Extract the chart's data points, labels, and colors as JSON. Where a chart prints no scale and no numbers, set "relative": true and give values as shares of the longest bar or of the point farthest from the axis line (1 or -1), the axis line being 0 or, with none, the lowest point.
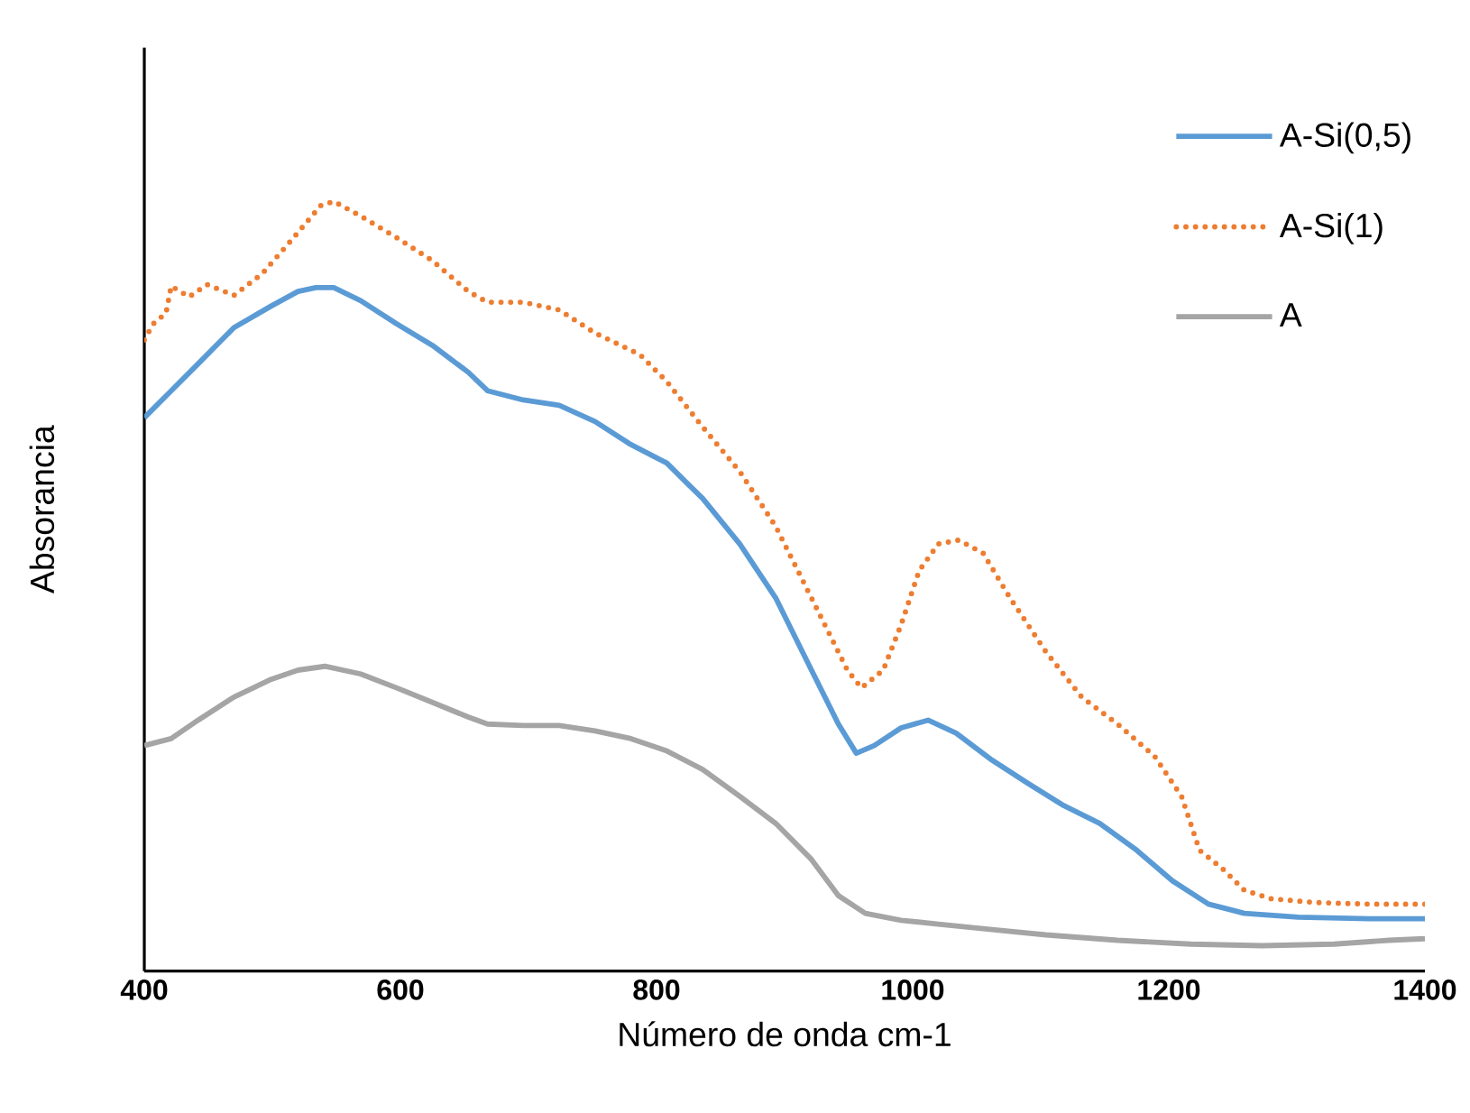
{
  "chart_data": {
    "type": "line",
    "xlabel": "Número de onda cm-1",
    "ylabel": "Absorancia",
    "relative": true,
    "xlim": [
      400,
      1400
    ],
    "xticks": [
      400,
      600,
      800,
      1000,
      1200,
      1400
    ],
    "legend": "top right",
    "marker": "none",
    "grid": false,
    "series": [
      {
        "name": "A-Si(0,5)",
        "color": "#5b9bd5",
        "line_style": "solid",
        "x": [
          400,
          421,
          442,
          470,
          499,
          520,
          534,
          548,
          569,
          597,
          625,
          653,
          668,
          696,
          724,
          752,
          780,
          808,
          836,
          865,
          893,
          921,
          942,
          956,
          970,
          991,
          1012,
          1034,
          1062,
          1090,
          1118,
          1146,
          1175,
          1203,
          1231,
          1259,
          1301,
          1357,
          1400
        ],
        "values": [
          0.719,
          0.754,
          0.789,
          0.836,
          0.864,
          0.883,
          0.888,
          0.888,
          0.871,
          0.841,
          0.813,
          0.778,
          0.754,
          0.742,
          0.735,
          0.714,
          0.684,
          0.66,
          0.614,
          0.555,
          0.485,
          0.391,
          0.321,
          0.283,
          0.293,
          0.316,
          0.326,
          0.309,
          0.274,
          0.244,
          0.215,
          0.192,
          0.157,
          0.117,
          0.087,
          0.075,
          0.07,
          0.068,
          0.068
        ]
      },
      {
        "name": "A-Si(1)",
        "color": "#ed7d31",
        "line_style": "dotted",
        "x": [
          400,
          407,
          417,
          421,
          435,
          449,
          470,
          492,
          513,
          538,
          548,
          569,
          597,
          625,
          653,
          668,
          696,
          724,
          752,
          787,
          808,
          836,
          865,
          893,
          914,
          935,
          949,
          960,
          977,
          991,
          1005,
          1020,
          1036,
          1055,
          1076,
          1104,
          1132,
          1160,
          1189,
          1210,
          1224,
          1242,
          1259,
          1280,
          1315,
          1357,
          1400
        ],
        "values": [
          0.82,
          0.841,
          0.855,
          0.89,
          0.876,
          0.892,
          0.878,
          0.906,
          0.946,
          0.995,
          1.0,
          0.981,
          0.953,
          0.923,
          0.883,
          0.869,
          0.869,
          0.859,
          0.829,
          0.801,
          0.766,
          0.707,
          0.649,
          0.578,
          0.508,
          0.438,
          0.391,
          0.368,
          0.391,
          0.45,
          0.52,
          0.555,
          0.56,
          0.543,
          0.485,
          0.415,
          0.356,
          0.321,
          0.279,
          0.227,
          0.157,
          0.133,
          0.105,
          0.094,
          0.089,
          0.087,
          0.087
        ]
      },
      {
        "name": "A",
        "color": "#a5a5a5",
        "line_style": "solid",
        "x": [
          400,
          421,
          442,
          470,
          499,
          520,
          541,
          569,
          597,
          625,
          653,
          668,
          696,
          724,
          752,
          780,
          808,
          836,
          865,
          893,
          921,
          942,
          963,
          991,
          1020,
          1062,
          1104,
          1160,
          1217,
          1273,
          1329,
          1372,
          1400
        ],
        "values": [
          0.293,
          0.302,
          0.326,
          0.356,
          0.379,
          0.391,
          0.396,
          0.386,
          0.368,
          0.349,
          0.33,
          0.321,
          0.319,
          0.319,
          0.312,
          0.302,
          0.286,
          0.262,
          0.227,
          0.192,
          0.145,
          0.098,
          0.075,
          0.066,
          0.061,
          0.054,
          0.047,
          0.04,
          0.035,
          0.033,
          0.035,
          0.04,
          0.042
        ]
      }
    ]
  }
}
